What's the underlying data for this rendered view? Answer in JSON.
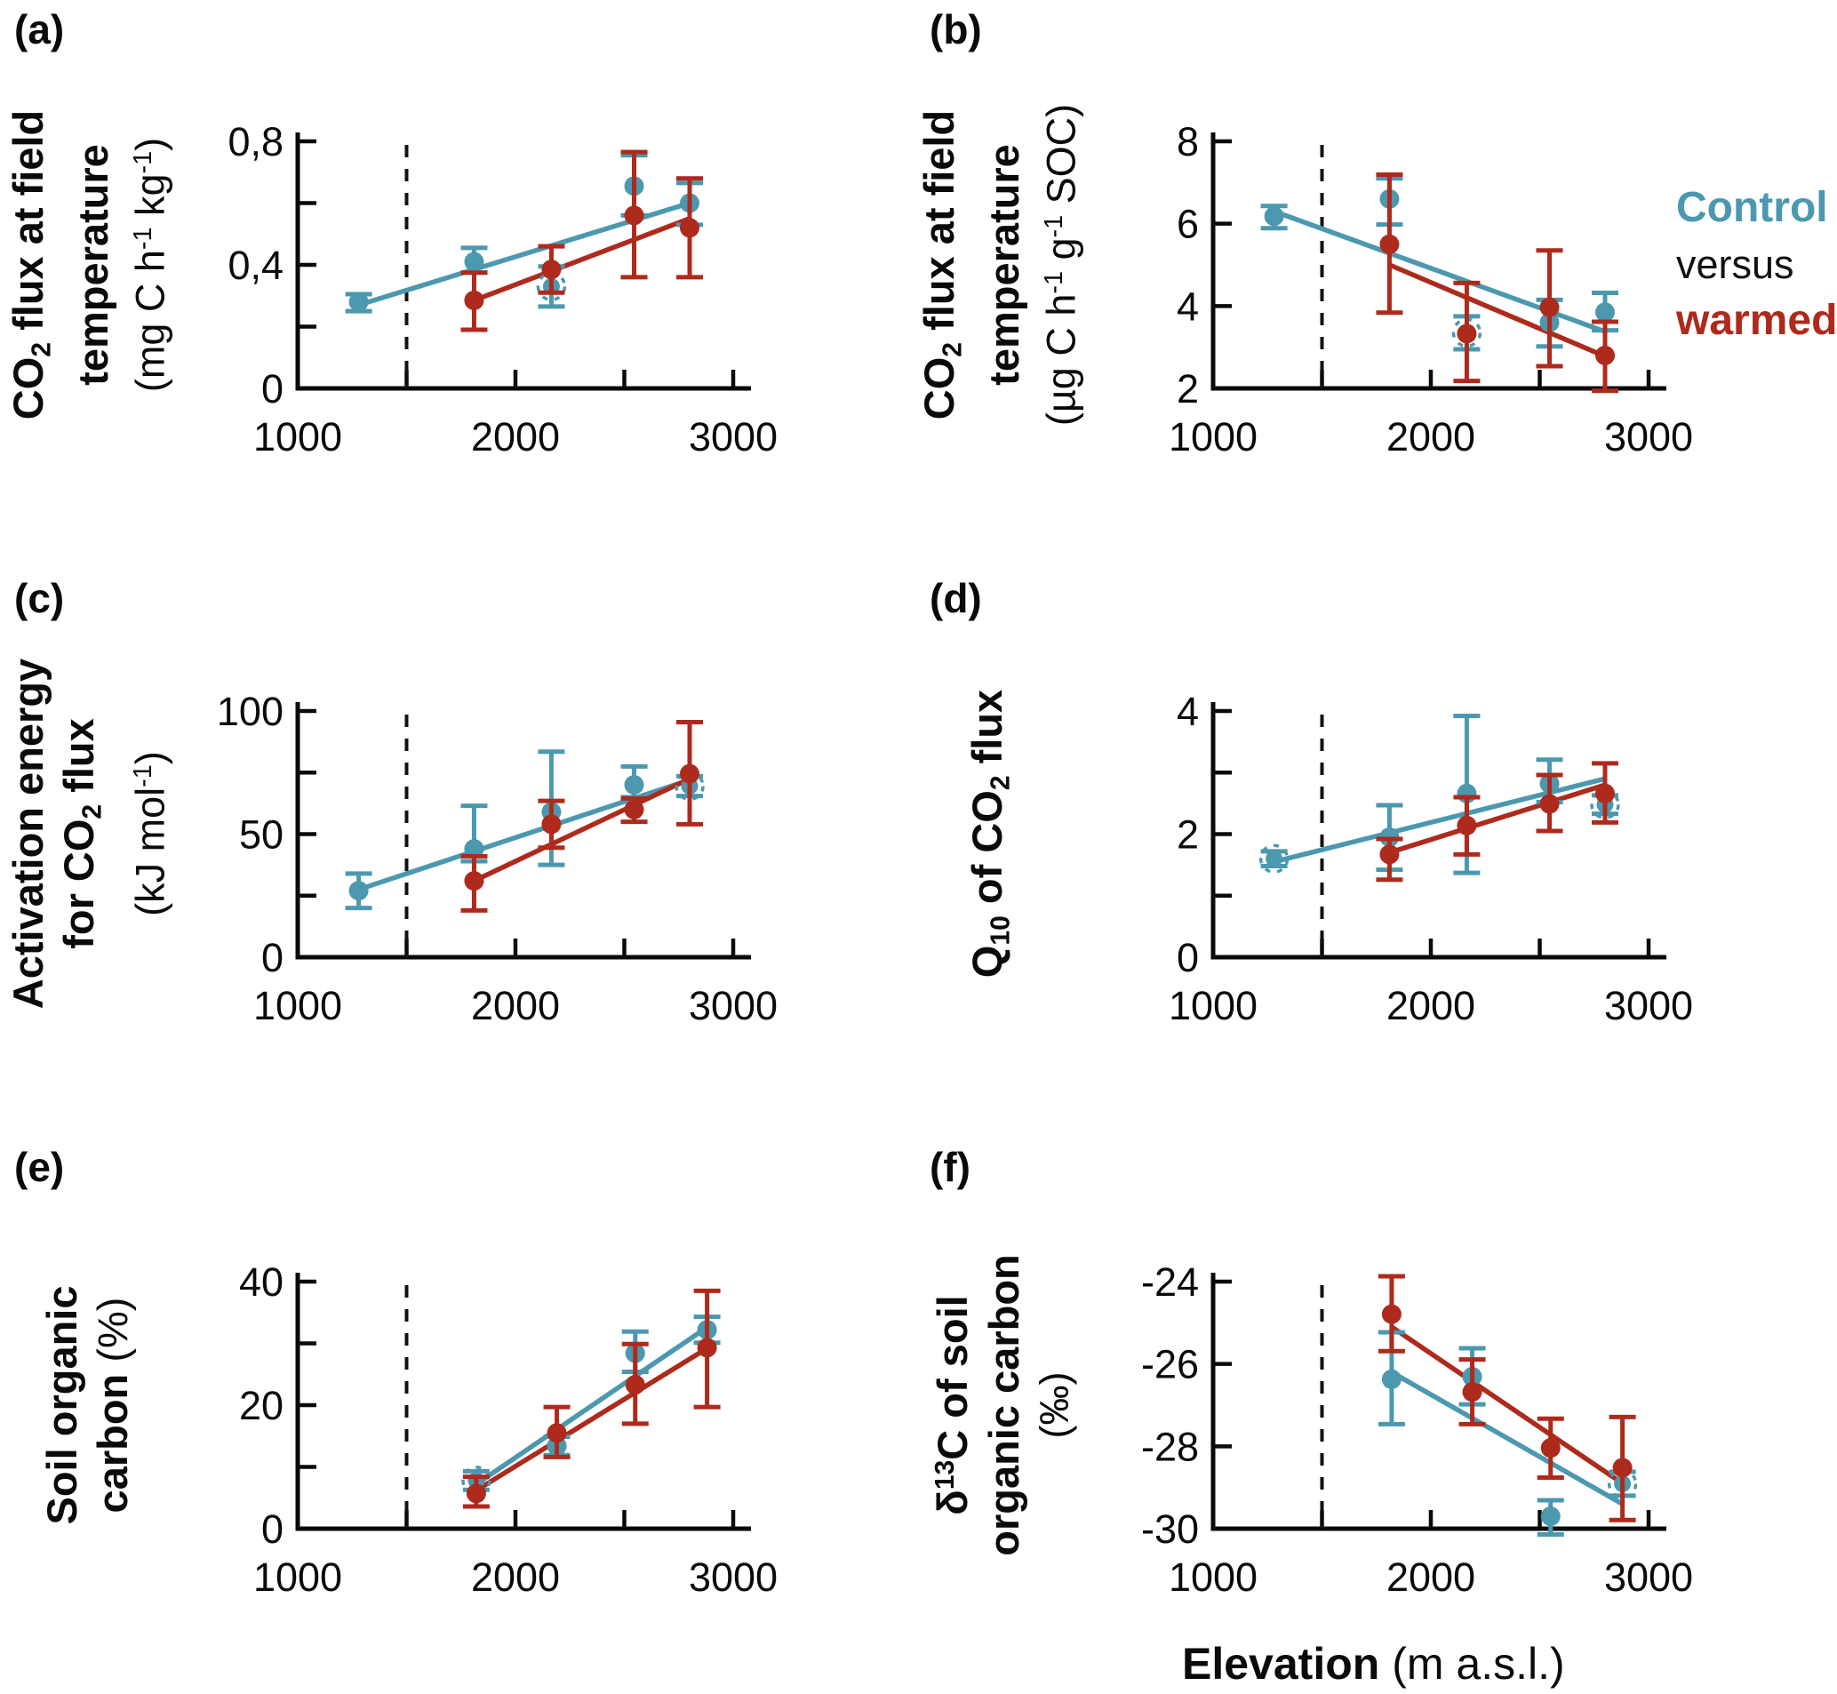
{
  "figure": {
    "legend": {
      "control": "Control",
      "versus": "versus",
      "warmed": "warmed"
    },
    "x_axis_title": {
      "bold": "Elevation",
      "regular": " (m a.s.l.)"
    },
    "colors": {
      "control": "#4B98AF",
      "warmed": "#AE2A1C",
      "axis": "#0a0a0a"
    }
  },
  "chart_data": {
    "type": "scatter",
    "xlabel": "Elevation (m a.s.l.)",
    "x_axis": {
      "tick_positions": [
        1500,
        2000,
        2500,
        3000
      ],
      "labeled_ticks": [
        1000,
        2000,
        3000
      ],
      "labels": [
        "1000",
        "2000",
        "3000"
      ],
      "dashed_reference_x": 1500,
      "xlim": [
        1000,
        3100
      ]
    },
    "legend_position": "right of panel b",
    "grid": false,
    "panels": [
      {
        "id": "a",
        "label": "(a)",
        "title_lines": [
          {
            "bold": true,
            "segs": [
              {
                "t": "CO"
              },
              {
                "t": "2",
                "sub": true
              },
              {
                "t": " flux at field"
              }
            ]
          },
          {
            "bold": true,
            "segs": [
              {
                "t": "temperature"
              }
            ]
          },
          {
            "bold": false,
            "segs": [
              {
                "t": "(mg C h"
              },
              {
                "t": "-1",
                "sup": true
              },
              {
                "t": " kg"
              },
              {
                "t": "-1",
                "sup": true
              },
              {
                "t": ")"
              }
            ]
          }
        ],
        "ylim": [
          0,
          0.8
        ],
        "y_majors": [
          0,
          0.4,
          0.8
        ],
        "y_major_labels": [
          "0",
          "0,4",
          "0,8"
        ],
        "y_minors": [
          0.2,
          0.6
        ],
        "series": [
          {
            "name": "control",
            "x": [
              1280,
              1810,
              2165,
              2545,
              2800
            ],
            "y": [
              0.28,
              0.41,
              0.33,
              0.655,
              0.6
            ],
            "err_lo": [
              0.25,
              0.375,
              0.265,
              0.56,
              0.53
            ],
            "err_hi": [
              0.305,
              0.455,
              0.395,
              0.755,
              0.665
            ],
            "dashed_marker": [
              false,
              false,
              true,
              false,
              false
            ]
          },
          {
            "name": "warmed",
            "x": [
              1810,
              2165,
              2545,
              2800
            ],
            "y": [
              0.285,
              0.385,
              0.56,
              0.52
            ],
            "err_lo": [
              0.19,
              0.31,
              0.36,
              0.36
            ],
            "err_hi": [
              0.375,
              0.46,
              0.765,
              0.68
            ],
            "dashed_marker": [
              false,
              false,
              false,
              false
            ]
          }
        ],
        "trend": {
          "control": [
            1280,
            0.27,
            2800,
            0.6
          ],
          "warmed": [
            1810,
            0.285,
            2800,
            0.55
          ]
        }
      },
      {
        "id": "b",
        "label": "(b)",
        "title_lines": [
          {
            "bold": true,
            "segs": [
              {
                "t": "CO"
              },
              {
                "t": "2",
                "sub": true
              },
              {
                "t": " flux at field"
              }
            ]
          },
          {
            "bold": true,
            "segs": [
              {
                "t": "temperature"
              }
            ]
          },
          {
            "bold": false,
            "segs": [
              {
                "t": "(µg C h"
              },
              {
                "t": "-1",
                "sup": true
              },
              {
                "t": " g"
              },
              {
                "t": "-1",
                "sup": true
              },
              {
                "t": " SOC)"
              }
            ]
          }
        ],
        "ylim": [
          2,
          8
        ],
        "y_majors": [
          2,
          4,
          6,
          8
        ],
        "y_major_labels": [
          "2",
          "4",
          "6",
          "8"
        ],
        "y_minors": [],
        "series": [
          {
            "name": "control",
            "x": [
              1280,
              1810,
              2165,
              2545,
              2800
            ],
            "y": [
              6.18,
              6.6,
              3.35,
              3.6,
              3.85
            ],
            "err_lo": [
              5.89,
              5.98,
              2.95,
              3.02,
              3.41
            ],
            "err_hi": [
              6.43,
              7.1,
              3.75,
              4.15,
              4.32
            ],
            "dashed_marker": [
              false,
              false,
              true,
              false,
              false
            ]
          },
          {
            "name": "warmed",
            "x": [
              1810,
              2165,
              2545,
              2800
            ],
            "y": [
              5.5,
              3.33,
              3.97,
              2.8
            ],
            "err_lo": [
              3.84,
              2.18,
              2.54,
              1.94
            ],
            "err_hi": [
              7.19,
              4.56,
              5.35,
              3.62
            ],
            "dashed_marker": [
              false,
              false,
              false,
              false
            ]
          }
        ],
        "trend": {
          "control": [
            1280,
            6.3,
            2800,
            3.38
          ],
          "warmed": [
            1810,
            5.0,
            2800,
            2.78
          ]
        }
      },
      {
        "id": "c",
        "label": "(c)",
        "title_lines": [
          {
            "bold": true,
            "segs": [
              {
                "t": "Activation energy"
              }
            ]
          },
          {
            "bold": true,
            "segs": [
              {
                "t": "for CO"
              },
              {
                "t": "2",
                "sub": true
              },
              {
                "t": " flux"
              }
            ]
          },
          {
            "bold": false,
            "segs": [
              {
                "t": "(kJ mol"
              },
              {
                "t": "-1",
                "sup": true
              },
              {
                "t": ")"
              }
            ]
          }
        ],
        "ylim": [
          0,
          100
        ],
        "y_majors": [
          0,
          50,
          100
        ],
        "y_major_labels": [
          "0",
          "50",
          "100"
        ],
        "y_minors": [
          25,
          75
        ],
        "series": [
          {
            "name": "control",
            "x": [
              1280,
              1810,
              2165,
              2545,
              2800
            ],
            "y": [
              27,
              44,
              59,
              70,
              69.5
            ],
            "err_lo": [
              20,
              39,
              37.5,
              65,
              65.5
            ],
            "err_hi": [
              34,
              61.5,
              83.5,
              77.5,
              73.5
            ],
            "dashed_marker": [
              false,
              false,
              false,
              false,
              true
            ]
          },
          {
            "name": "warmed",
            "x": [
              1810,
              2165,
              2545,
              2800
            ],
            "y": [
              31,
              54,
              60,
              74.5
            ],
            "err_lo": [
              19,
              44.5,
              55,
              54
            ],
            "err_hi": [
              41,
              63.5,
              64.5,
              95.5
            ],
            "dashed_marker": [
              false,
              false,
              false,
              false
            ]
          }
        ],
        "trend": {
          "control": [
            1280,
            27.5,
            2800,
            72
          ],
          "warmed": [
            1810,
            31,
            2800,
            72.5
          ]
        }
      },
      {
        "id": "d",
        "label": "(d)",
        "title_lines": [
          {
            "bold": true,
            "segs": [
              {
                "t": "Q"
              },
              {
                "t": "10",
                "sub": true
              },
              {
                "t": " of CO"
              },
              {
                "t": "2",
                "sub": true
              },
              {
                "t": " flux"
              }
            ]
          }
        ],
        "ylim": [
          0,
          4
        ],
        "y_majors": [
          0,
          2,
          4
        ],
        "y_major_labels": [
          "0",
          "2",
          "4"
        ],
        "y_minors": [
          1,
          3
        ],
        "series": [
          {
            "name": "control",
            "x": [
              1280,
              1810,
              2165,
              2545,
              2800
            ],
            "y": [
              1.6,
              1.95,
              2.66,
              2.82,
              2.48
            ],
            "err_lo": [
              1.48,
              1.42,
              1.37,
              2.52,
              2.33
            ],
            "err_hi": [
              1.72,
              2.47,
              3.92,
              3.21,
              2.63
            ],
            "dashed_marker": [
              true,
              false,
              false,
              false,
              true
            ]
          },
          {
            "name": "warmed",
            "x": [
              1810,
              2165,
              2545,
              2800
            ],
            "y": [
              1.67,
              2.14,
              2.49,
              2.66
            ],
            "err_lo": [
              1.26,
              1.67,
              2.05,
              2.19
            ],
            "err_hi": [
              1.92,
              2.6,
              2.96,
              3.15
            ],
            "dashed_marker": [
              false,
              false,
              false,
              false
            ]
          }
        ],
        "trend": {
          "control": [
            1280,
            1.55,
            2800,
            2.9
          ],
          "warmed": [
            1810,
            1.7,
            2800,
            2.8
          ]
        }
      },
      {
        "id": "e",
        "label": "(e)",
        "title_lines": [
          {
            "bold": true,
            "segs": [
              {
                "t": "Soil organic"
              }
            ]
          },
          {
            "bold": true,
            "segs": [
              {
                "t": "carbon "
              },
              {
                "t": "(%)",
                "reg": true
              }
            ]
          }
        ],
        "ylim": [
          0,
          40
        ],
        "y_majors": [
          0,
          20,
          40
        ],
        "y_major_labels": [
          "0",
          "20",
          "40"
        ],
        "y_minors": [
          10,
          30
        ],
        "series": [
          {
            "name": "control",
            "x": [
              1820,
              2190,
              2550,
              2880
            ],
            "y": [
              7.8,
              13.4,
              28.4,
              32.2
            ],
            "err_lo": [
              6.3,
              11.9,
              25.4,
              30.1
            ],
            "err_hi": [
              9.3,
              14.9,
              31.9,
              34.3
            ],
            "dashed_marker": [
              true,
              false,
              false,
              false
            ]
          },
          {
            "name": "warmed",
            "x": [
              1820,
              2190,
              2550,
              2880
            ],
            "y": [
              5.7,
              15.5,
              23.3,
              29.3
            ],
            "err_lo": [
              3.6,
              11.6,
              17.0,
              19.7
            ],
            "err_hi": [
              8.4,
              19.7,
              29.9,
              38.5
            ],
            "dashed_marker": [
              false,
              false,
              false,
              false
            ]
          }
        ],
        "trend": {
          "control": [
            1820,
            7.2,
            2880,
            32.6
          ],
          "warmed": [
            1820,
            6.2,
            2880,
            29.2
          ]
        }
      },
      {
        "id": "f",
        "label": "(f)",
        "title_lines": [
          {
            "bold": true,
            "segs": [
              {
                "t": "δ"
              },
              {
                "t": "13",
                "sup": true
              },
              {
                "t": "C of soil"
              }
            ]
          },
          {
            "bold": true,
            "segs": [
              {
                "t": "organic carbon"
              }
            ]
          },
          {
            "bold": false,
            "segs": [
              {
                "t": "(‰)"
              }
            ]
          }
        ],
        "ylim": [
          -30,
          -24
        ],
        "y_majors": [
          -30,
          -28,
          -26,
          -24
        ],
        "y_major_labels": [
          "-30",
          "-28",
          "-26",
          "-24"
        ],
        "y_minors": [],
        "series": [
          {
            "name": "control",
            "x": [
              1820,
              2190,
              2550,
              2880
            ],
            "y": [
              -26.37,
              -26.31,
              -29.7,
              -28.91
            ],
            "err_lo": [
              -27.46,
              -26.98,
              -30.14,
              -29.2
            ],
            "err_hi": [
              -25.23,
              -25.62,
              -29.31,
              -28.62
            ],
            "dashed_marker": [
              false,
              false,
              false,
              true
            ]
          },
          {
            "name": "warmed",
            "x": [
              1820,
              2190,
              2550,
              2880
            ],
            "y": [
              -24.79,
              -26.68,
              -28.04,
              -28.52
            ],
            "err_lo": [
              -25.69,
              -27.46,
              -28.76,
              -29.79
            ],
            "err_hi": [
              -23.87,
              -25.89,
              -27.33,
              -27.29
            ],
            "dashed_marker": [
              false,
              false,
              false,
              false
            ]
          }
        ],
        "trend": {
          "control": [
            1820,
            -26.2,
            2880,
            -29.4
          ],
          "warmed": [
            1820,
            -25.1,
            2880,
            -28.9
          ]
        }
      }
    ]
  }
}
